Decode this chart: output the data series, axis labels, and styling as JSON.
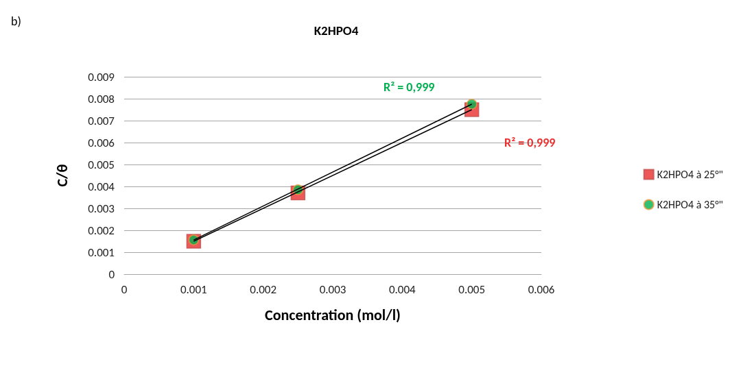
{
  "chart_data": {
    "type": "scatter",
    "title": "K2HPO4",
    "xlabel": "Concentration (mol/l)",
    "ylabel": "C/θ",
    "annotations": [
      "b)",
      "R² = 0,999",
      "R² = 0,999"
    ],
    "xlim": [
      0,
      0.006
    ],
    "xticks": [
      0,
      0.001,
      0.002,
      0.003,
      0.004,
      0.005,
      0.006
    ],
    "ylim": [
      0,
      0.009
    ],
    "yticks": [
      0,
      0.001,
      0.002,
      0.003,
      0.004,
      0.005,
      0.006,
      0.007,
      0.008,
      0.009
    ],
    "grid": "y",
    "legend": "right",
    "series": [
      {
        "name": "K2HPO4 à 25°\"",
        "marker": "square",
        "color": "#e8302f",
        "x": [
          0.001,
          0.0025,
          0.005
        ],
        "values": [
          0.0015,
          0.0037,
          0.0075
        ]
      },
      {
        "name": "K2HPO4 à 35°\"",
        "marker": "circle",
        "color": "#00b050",
        "x": [
          0.001,
          0.0025,
          0.005
        ],
        "values": [
          0.00156,
          0.00385,
          0.00775
        ]
      },
      {
        "type": "line",
        "color": "#000000",
        "x": [
          0.001,
          0.005
        ],
        "values": [
          0.0015,
          0.0075
        ]
      },
      {
        "type": "line",
        "color": "#000000",
        "x": [
          0.001,
          0.005
        ],
        "values": [
          0.00156,
          0.00775
        ]
      }
    ]
  }
}
